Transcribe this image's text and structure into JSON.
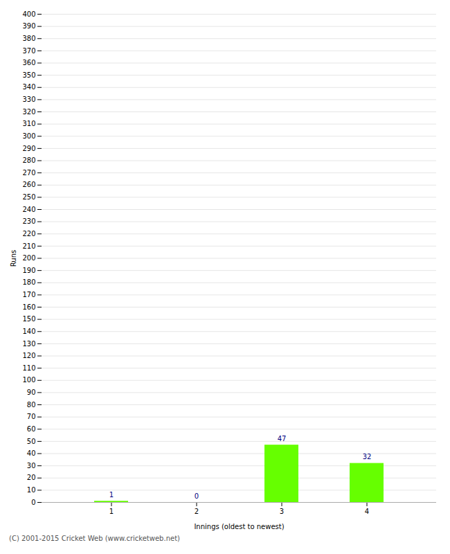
{
  "chart_data": {
    "type": "bar",
    "categories": [
      "1",
      "2",
      "3",
      "4"
    ],
    "values": [
      1,
      0,
      47,
      32
    ],
    "color": "#66ff00",
    "xlabel": "Innings (oldest to newest)",
    "ylabel": "Runs",
    "ylim": [
      0,
      400
    ],
    "yticks": [
      0,
      10,
      20,
      30,
      40,
      50,
      60,
      70,
      80,
      90,
      100,
      110,
      120,
      130,
      140,
      150,
      160,
      170,
      180,
      190,
      200,
      210,
      220,
      230,
      240,
      250,
      260,
      270,
      280,
      290,
      300,
      310,
      320,
      330,
      340,
      350,
      360,
      370,
      380,
      390,
      400
    ],
    "grid": true,
    "data_labels": true,
    "annotations": [
      "(C) 2001-2015 Cricket Web (www.cricketweb.net)"
    ]
  }
}
